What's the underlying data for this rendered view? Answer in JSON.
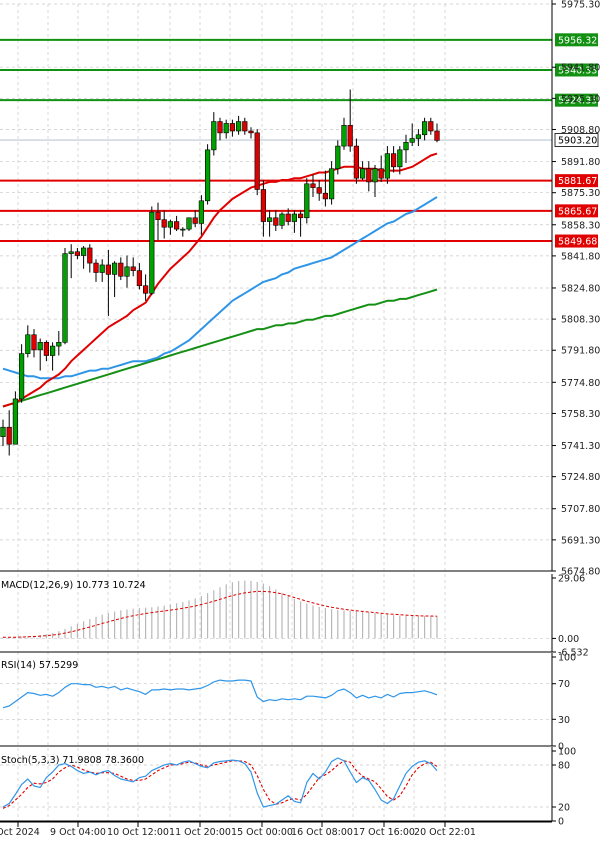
{
  "colors": {
    "up": "#00a000",
    "down": "#dd0000",
    "candle_outline": "#000000",
    "ma_fast": "#e00000",
    "ma_mid": "#2f95e8",
    "ma_slow": "#159015",
    "resistance": "#119011",
    "support": "#e00000",
    "grid": "#c8c8c8",
    "macd_hist": "#b8b8b8",
    "macd_signal": "#e00000",
    "rsi_line": "#2f95e8",
    "stoch_k": "#2f95e8",
    "stoch_d": "#e00000",
    "current_tag": "#ffffff"
  },
  "chart_data": [
    {
      "type": "candlestick",
      "instrument_panel": "price",
      "y_ticks": [
        "5975.30",
        "5941.80",
        "5925.30",
        "5908.80",
        "5891.80",
        "5875.30",
        "5858.30",
        "5841.80",
        "5824.80",
        "5808.30",
        "5791.80",
        "5774.80",
        "5758.30",
        "5741.30",
        "5724.80",
        "5707.80",
        "5691.30",
        "5674.80"
      ],
      "ylim": [
        5674.8,
        5975.3
      ],
      "x_ticks": [
        "Oct 2024",
        "9 Oct 04:00",
        "10 Oct 12:00",
        "11 Oct 20:00",
        "15 Oct 00:00",
        "16 Oct 08:00",
        "17 Oct 16:00",
        "20 Oct 22:01"
      ],
      "current_price": "5903.20",
      "resistance_levels": [
        "5956.32",
        "5940.33",
        "5924.33"
      ],
      "support_levels": [
        "5881.67",
        "5865.67",
        "5849.68"
      ],
      "candles": [
        {
          "o": 5746,
          "h": 5755,
          "l": 5741,
          "c": 5751
        },
        {
          "o": 5751,
          "h": 5760,
          "l": 5736,
          "c": 5742
        },
        {
          "o": 5742,
          "h": 5770,
          "l": 5742,
          "c": 5766
        },
        {
          "o": 5766,
          "h": 5795,
          "l": 5764,
          "c": 5790
        },
        {
          "o": 5790,
          "h": 5805,
          "l": 5788,
          "c": 5800
        },
        {
          "o": 5800,
          "h": 5803,
          "l": 5788,
          "c": 5792
        },
        {
          "o": 5792,
          "h": 5798,
          "l": 5781,
          "c": 5796
        },
        {
          "o": 5796,
          "h": 5797,
          "l": 5786,
          "c": 5789
        },
        {
          "o": 5789,
          "h": 5796,
          "l": 5781,
          "c": 5794
        },
        {
          "o": 5794,
          "h": 5802,
          "l": 5789,
          "c": 5796
        },
        {
          "o": 5796,
          "h": 5846,
          "l": 5795,
          "c": 5843
        },
        {
          "o": 5843,
          "h": 5848,
          "l": 5830,
          "c": 5844
        },
        {
          "o": 5844,
          "h": 5846,
          "l": 5840,
          "c": 5842
        },
        {
          "o": 5842,
          "h": 5847,
          "l": 5835,
          "c": 5846
        },
        {
          "o": 5846,
          "h": 5848,
          "l": 5833,
          "c": 5838
        },
        {
          "o": 5838,
          "h": 5840,
          "l": 5828,
          "c": 5833
        },
        {
          "o": 5833,
          "h": 5840,
          "l": 5828,
          "c": 5837
        },
        {
          "o": 5837,
          "h": 5845,
          "l": 5810,
          "c": 5832
        },
        {
          "o": 5832,
          "h": 5839,
          "l": 5820,
          "c": 5838
        },
        {
          "o": 5838,
          "h": 5841,
          "l": 5829,
          "c": 5831
        },
        {
          "o": 5831,
          "h": 5842,
          "l": 5825,
          "c": 5836
        },
        {
          "o": 5836,
          "h": 5841,
          "l": 5831,
          "c": 5834
        },
        {
          "o": 5834,
          "h": 5838,
          "l": 5824,
          "c": 5826
        },
        {
          "o": 5826,
          "h": 5832,
          "l": 5818,
          "c": 5822
        },
        {
          "o": 5822,
          "h": 5868,
          "l": 5821,
          "c": 5865
        },
        {
          "o": 5865,
          "h": 5870,
          "l": 5850,
          "c": 5861
        },
        {
          "o": 5861,
          "h": 5866,
          "l": 5851,
          "c": 5857
        },
        {
          "o": 5857,
          "h": 5861,
          "l": 5853,
          "c": 5860
        },
        {
          "o": 5860,
          "h": 5863,
          "l": 5855,
          "c": 5856
        },
        {
          "o": 5856,
          "h": 5857,
          "l": 5852,
          "c": 5856
        },
        {
          "o": 5856,
          "h": 5862,
          "l": 5855,
          "c": 5862
        },
        {
          "o": 5862,
          "h": 5866,
          "l": 5857,
          "c": 5859
        },
        {
          "o": 5859,
          "h": 5874,
          "l": 5853,
          "c": 5871
        },
        {
          "o": 5871,
          "h": 5901,
          "l": 5869,
          "c": 5898
        },
        {
          "o": 5898,
          "h": 5918,
          "l": 5895,
          "c": 5913
        },
        {
          "o": 5913,
          "h": 5915,
          "l": 5903,
          "c": 5907
        },
        {
          "o": 5907,
          "h": 5914,
          "l": 5904,
          "c": 5912
        },
        {
          "o": 5912,
          "h": 5914,
          "l": 5905,
          "c": 5908
        },
        {
          "o": 5908,
          "h": 5916,
          "l": 5906,
          "c": 5913
        },
        {
          "o": 5913,
          "h": 5915,
          "l": 5906,
          "c": 5908
        },
        {
          "o": 5908,
          "h": 5910,
          "l": 5904,
          "c": 5907
        },
        {
          "o": 5907,
          "h": 5909,
          "l": 5874,
          "c": 5877
        },
        {
          "o": 5877,
          "h": 5882,
          "l": 5852,
          "c": 5860
        },
        {
          "o": 5860,
          "h": 5866,
          "l": 5852,
          "c": 5862
        },
        {
          "o": 5862,
          "h": 5866,
          "l": 5855,
          "c": 5858
        },
        {
          "o": 5858,
          "h": 5865,
          "l": 5856,
          "c": 5864
        },
        {
          "o": 5864,
          "h": 5867,
          "l": 5858,
          "c": 5860
        },
        {
          "o": 5860,
          "h": 5866,
          "l": 5854,
          "c": 5864
        },
        {
          "o": 5864,
          "h": 5866,
          "l": 5852,
          "c": 5862
        },
        {
          "o": 5862,
          "h": 5883,
          "l": 5859,
          "c": 5880
        },
        {
          "o": 5880,
          "h": 5885,
          "l": 5873,
          "c": 5878
        },
        {
          "o": 5878,
          "h": 5882,
          "l": 5871,
          "c": 5875
        },
        {
          "o": 5875,
          "h": 5887,
          "l": 5868,
          "c": 5872
        },
        {
          "o": 5872,
          "h": 5892,
          "l": 5869,
          "c": 5888
        },
        {
          "o": 5888,
          "h": 5903,
          "l": 5885,
          "c": 5900
        },
        {
          "o": 5900,
          "h": 5915,
          "l": 5898,
          "c": 5911
        },
        {
          "o": 5911,
          "h": 5930,
          "l": 5897,
          "c": 5900
        },
        {
          "o": 5900,
          "h": 5904,
          "l": 5880,
          "c": 5883
        },
        {
          "o": 5883,
          "h": 5892,
          "l": 5882,
          "c": 5888
        },
        {
          "o": 5888,
          "h": 5892,
          "l": 5876,
          "c": 5881
        },
        {
          "o": 5881,
          "h": 5890,
          "l": 5873,
          "c": 5888
        },
        {
          "o": 5888,
          "h": 5895,
          "l": 5881,
          "c": 5883
        },
        {
          "o": 5883,
          "h": 5900,
          "l": 5880,
          "c": 5896
        },
        {
          "o": 5896,
          "h": 5900,
          "l": 5886,
          "c": 5889
        },
        {
          "o": 5889,
          "h": 5900,
          "l": 5885,
          "c": 5898
        },
        {
          "o": 5898,
          "h": 5906,
          "l": 5891,
          "c": 5902
        },
        {
          "o": 5902,
          "h": 5912,
          "l": 5900,
          "c": 5904
        },
        {
          "o": 5904,
          "h": 5909,
          "l": 5900,
          "c": 5906
        },
        {
          "o": 5906,
          "h": 5915,
          "l": 5903,
          "c": 5913
        },
        {
          "o": 5913,
          "h": 5915,
          "l": 5906,
          "c": 5908
        },
        {
          "o": 5908,
          "h": 5912,
          "l": 5902,
          "c": 5903
        }
      ],
      "ma_fast": [
        5762,
        5763,
        5764,
        5766,
        5768,
        5770,
        5772,
        5775,
        5777,
        5779,
        5782,
        5786,
        5789,
        5792,
        5795,
        5798,
        5801,
        5804,
        5806,
        5808,
        5810,
        5813,
        5815,
        5817,
        5822,
        5827,
        5831,
        5835,
        5838,
        5841,
        5844,
        5848,
        5852,
        5857,
        5862,
        5866,
        5869,
        5872,
        5874,
        5876,
        5878,
        5879,
        5880,
        5881,
        5881,
        5882,
        5882,
        5883,
        5883,
        5884,
        5885,
        5886,
        5886,
        5887,
        5888,
        5889,
        5889,
        5889,
        5888,
        5888,
        5888,
        5887,
        5887,
        5887,
        5887,
        5888,
        5889,
        5891,
        5893,
        5895,
        5896
      ],
      "ma_mid": [
        5782,
        5781,
        5780,
        5779,
        5778,
        5778,
        5777,
        5777,
        5777,
        5777,
        5778,
        5778,
        5779,
        5780,
        5781,
        5781,
        5782,
        5782,
        5783,
        5784,
        5785,
        5786,
        5786,
        5786,
        5787,
        5788,
        5790,
        5791,
        5793,
        5795,
        5797,
        5800,
        5803,
        5806,
        5809,
        5812,
        5815,
        5818,
        5820,
        5822,
        5824,
        5826,
        5828,
        5829,
        5830,
        5832,
        5833,
        5835,
        5836,
        5837,
        5838,
        5839,
        5840,
        5841,
        5843,
        5845,
        5847,
        5849,
        5851,
        5853,
        5855,
        5857,
        5859,
        5860,
        5862,
        5864,
        5865,
        5867,
        5869,
        5871,
        5873
      ],
      "ma_slow": [
        5762,
        5763,
        5764,
        5765,
        5766,
        5767,
        5768,
        5769,
        5770,
        5771,
        5772,
        5773,
        5774,
        5775,
        5776,
        5777,
        5778,
        5779,
        5780,
        5781,
        5782,
        5783,
        5784,
        5785,
        5786,
        5787,
        5788,
        5789,
        5790,
        5791,
        5792,
        5793,
        5794,
        5795,
        5796,
        5797,
        5798,
        5799,
        5800,
        5801,
        5802,
        5803,
        5803,
        5804,
        5805,
        5805,
        5806,
        5806,
        5807,
        5808,
        5808,
        5809,
        5810,
        5810,
        5811,
        5812,
        5813,
        5814,
        5815,
        5816,
        5816,
        5817,
        5818,
        5818,
        5819,
        5819,
        5820,
        5821,
        5822,
        5823,
        5824
      ]
    },
    {
      "type": "bar",
      "indicator_panel": "MACD",
      "label": "MACD(12,26,9) 10.773 10.724",
      "y_ticks": [
        "29.06",
        "0.00",
        "-6.532"
      ],
      "ylim": [
        -6.532,
        29.06
      ],
      "histogram": [
        0.5,
        0.5,
        0.6,
        0.8,
        1.0,
        1.3,
        1.6,
        2.0,
        2.6,
        3.5,
        4.6,
        5.8,
        7.0,
        8.2,
        9.3,
        10.4,
        11.4,
        12.2,
        12.9,
        13.5,
        13.9,
        14.3,
        14.6,
        14.8,
        15.0,
        15.3,
        15.8,
        16.3,
        16.9,
        17.5,
        18.3,
        19.3,
        20.4,
        21.8,
        23.2,
        24.6,
        26.0,
        27.0,
        27.6,
        27.8,
        27.7,
        27.2,
        26.4,
        25.1,
        23.6,
        22.0,
        20.5,
        19.0,
        17.8,
        16.8,
        15.9,
        15.2,
        14.6,
        14.1,
        13.7,
        13.4,
        13.3,
        13.1,
        12.9,
        12.6,
        12.2,
        11.8,
        11.5,
        11.2,
        11.0,
        10.9,
        10.8,
        10.8,
        10.8,
        10.8,
        10.8
      ],
      "signal": [
        0.6,
        0.6,
        0.6,
        0.7,
        0.8,
        0.9,
        1.1,
        1.3,
        1.6,
        2.0,
        2.6,
        3.2,
        3.9,
        4.7,
        5.5,
        6.3,
        7.2,
        8.0,
        8.8,
        9.6,
        10.3,
        10.9,
        11.5,
        12.0,
        12.4,
        12.8,
        13.2,
        13.6,
        14.0,
        14.5,
        15.0,
        15.6,
        16.3,
        17.1,
        17.9,
        18.8,
        19.7,
        20.6,
        21.3,
        21.9,
        22.3,
        22.6,
        22.6,
        22.4,
        22.0,
        21.4,
        20.6,
        19.7,
        18.8,
        17.9,
        17.1,
        16.3,
        15.6,
        15.0,
        14.5,
        14.0,
        13.6,
        13.3,
        13.0,
        12.7,
        12.4,
        12.1,
        11.8,
        11.6,
        11.4,
        11.2,
        11.0,
        10.9,
        10.8,
        10.8,
        10.7
      ]
    },
    {
      "type": "line",
      "indicator_panel": "RSI",
      "label": "RSI(14) 57.5299",
      "y_ticks": [
        "100",
        "70",
        "30",
        "0"
      ],
      "ylim": [
        0,
        100
      ],
      "values": [
        43,
        45,
        50,
        55,
        60,
        59,
        57,
        58,
        56,
        60,
        66,
        70,
        70,
        69,
        69,
        66,
        67,
        65,
        67,
        63,
        65,
        63,
        61,
        58,
        63,
        63,
        64,
        63,
        64,
        64,
        63,
        64,
        65,
        68,
        72,
        74,
        73,
        73,
        74,
        74,
        73,
        55,
        50,
        52,
        51,
        53,
        52,
        53,
        52,
        56,
        56,
        55,
        54,
        57,
        62,
        64,
        60,
        54,
        57,
        54,
        56,
        54,
        58,
        55,
        59,
        60,
        60,
        61,
        62,
        60,
        57.5
      ]
    },
    {
      "type": "line",
      "indicator_panel": "Stochastic",
      "label": "Stoch(5,3,3) 71.9808 78.3600",
      "y_ticks": [
        "100",
        "80",
        "20",
        "0"
      ],
      "ylim": [
        0,
        100
      ],
      "k": [
        20,
        25,
        38,
        52,
        60,
        50,
        48,
        62,
        70,
        80,
        82,
        78,
        72,
        68,
        70,
        66,
        70,
        72,
        65,
        60,
        58,
        56,
        62,
        64,
        72,
        76,
        80,
        82,
        80,
        84,
        86,
        82,
        78,
        76,
        83,
        85,
        86,
        87,
        86,
        82,
        70,
        40,
        20,
        22,
        24,
        30,
        36,
        28,
        26,
        55,
        68,
        60,
        70,
        85,
        90,
        86,
        70,
        55,
        62,
        58,
        45,
        30,
        25,
        32,
        50,
        68,
        78,
        84,
        86,
        82,
        72
      ],
      "d": [
        18,
        22,
        30,
        38,
        48,
        54,
        53,
        55,
        60,
        70,
        76,
        80,
        77,
        73,
        70,
        68,
        69,
        69,
        68,
        64,
        60,
        58,
        58,
        60,
        66,
        72,
        76,
        80,
        80,
        82,
        84,
        83,
        80,
        78,
        80,
        82,
        84,
        86,
        86,
        85,
        80,
        65,
        45,
        30,
        24,
        26,
        30,
        32,
        30,
        38,
        50,
        62,
        66,
        72,
        80,
        86,
        84,
        72,
        64,
        60,
        56,
        46,
        35,
        30,
        36,
        50,
        66,
        76,
        82,
        84,
        78
      ]
    }
  ]
}
